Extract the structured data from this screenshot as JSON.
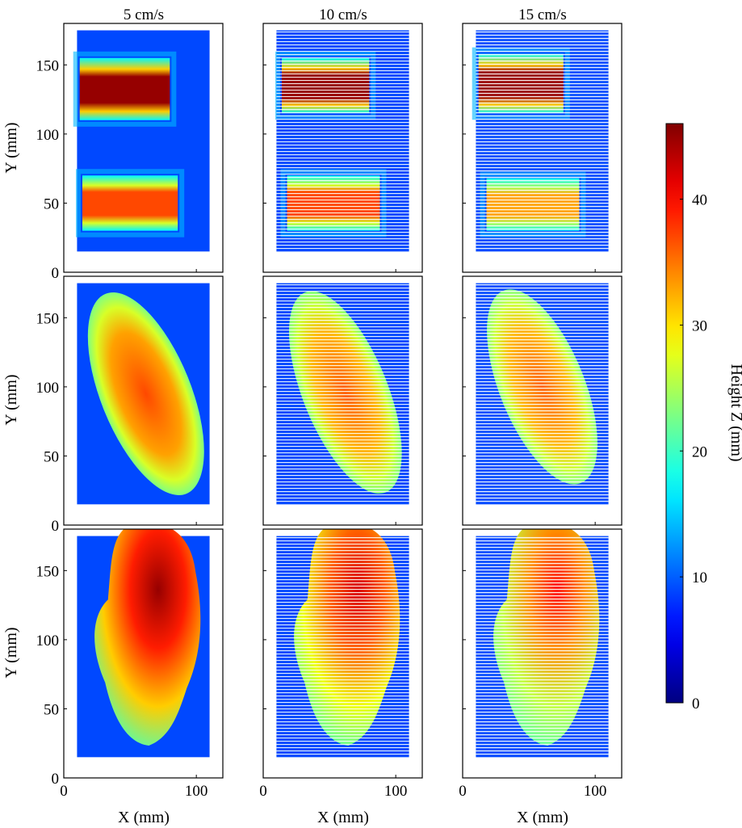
{
  "chart_data": {
    "type": "heatmap",
    "description_free": true,
    "columns": [
      "5 cm/s",
      "10 cm/s",
      "15 cm/s"
    ],
    "xlabel": "X (mm)",
    "ylabel": "Y (mm)",
    "xlim": [
      0,
      120
    ],
    "ylim": [
      0,
      180
    ],
    "xticks": [
      "0",
      "100"
    ],
    "yticks": [
      "0",
      "50",
      "100",
      "150"
    ],
    "colorbar": {
      "label": "Height Z (mm)",
      "min": 0,
      "max": 46,
      "ticks": [
        "0",
        "10",
        "20",
        "30",
        "40"
      ],
      "colormap": "jet"
    },
    "rows": [
      {
        "row": 1,
        "panels": [
          {
            "speed": "5 cm/s",
            "scan_bounds": {
              "x": [
                10,
                110
              ],
              "y": [
                15,
                175
              ]
            },
            "background_height": 9,
            "objects": [
              {
                "shape": "box",
                "x": [
                  12,
                  80
                ],
                "y": [
                  110,
                  155
                ],
                "peak_height": 45
              },
              {
                "shape": "box",
                "x": [
                  14,
                  86
                ],
                "y": [
                  30,
                  70
                ],
                "peak_height": 37
              }
            ]
          },
          {
            "speed": "10 cm/s",
            "scan_bounds": {
              "x": [
                10,
                110
              ],
              "y": [
                15,
                175
              ]
            },
            "background_height": 9,
            "objects": [
              {
                "shape": "box",
                "x": [
                  14,
                  80
                ],
                "y": [
                  115,
                  155
                ],
                "peak_height": 45
              },
              {
                "shape": "box",
                "x": [
                  18,
                  88
                ],
                "y": [
                  30,
                  70
                ],
                "peak_height": 37
              }
            ]
          },
          {
            "speed": "15 cm/s",
            "scan_bounds": {
              "x": [
                10,
                110
              ],
              "y": [
                15,
                175
              ]
            },
            "background_height": 9,
            "objects": [
              {
                "shape": "box",
                "x": [
                  12,
                  76
                ],
                "y": [
                  115,
                  158
                ],
                "peak_height": 45
              },
              {
                "shape": "box",
                "x": [
                  18,
                  88
                ],
                "y": [
                  30,
                  68
                ],
                "peak_height": 33
              }
            ]
          }
        ]
      },
      {
        "row": 2,
        "panels": [
          {
            "speed": "5 cm/s",
            "scan_bounds": {
              "x": [
                10,
                110
              ],
              "y": [
                15,
                175
              ]
            },
            "background_height": 9,
            "objects": [
              {
                "shape": "ellipse",
                "center": [
                  62,
                  95
                ],
                "radii": [
                  34,
                  78
                ],
                "tilt_deg": -22,
                "peak_height": 37
              }
            ]
          },
          {
            "speed": "10 cm/s",
            "scan_bounds": {
              "x": [
                10,
                110
              ],
              "y": [
                15,
                175
              ]
            },
            "background_height": 9,
            "objects": [
              {
                "shape": "ellipse",
                "center": [
                  62,
                  96
                ],
                "radii": [
                  32,
                  78
                ],
                "tilt_deg": -22,
                "peak_height": 36
              }
            ]
          },
          {
            "speed": "15 cm/s",
            "scan_bounds": {
              "x": [
                10,
                110
              ],
              "y": [
                15,
                175
              ]
            },
            "background_height": 9,
            "objects": [
              {
                "shape": "ellipse",
                "center": [
                  60,
                  100
                ],
                "radii": [
                  32,
                  75
                ],
                "tilt_deg": -22,
                "peak_height": 36
              }
            ]
          }
        ]
      },
      {
        "row": 3,
        "panels": [
          {
            "speed": "5 cm/s",
            "scan_bounds": {
              "x": [
                10,
                110
              ],
              "y": [
                15,
                175
              ]
            },
            "background_height": 9,
            "objects": [
              {
                "shape": "lobed",
                "center": [
                  62,
                  105
                ],
                "radii": [
                  44,
                  80
                ],
                "peak_height": 45
              }
            ]
          },
          {
            "speed": "10 cm/s",
            "scan_bounds": {
              "x": [
                10,
                110
              ],
              "y": [
                15,
                175
              ]
            },
            "background_height": 9,
            "objects": [
              {
                "shape": "lobed",
                "center": [
                  62,
                  105
                ],
                "radii": [
                  44,
                  80
                ],
                "peak_height": 42
              }
            ]
          },
          {
            "speed": "15 cm/s",
            "scan_bounds": {
              "x": [
                10,
                110
              ],
              "y": [
                15,
                175
              ]
            },
            "background_height": 9,
            "objects": [
              {
                "shape": "lobed",
                "center": [
                  62,
                  105
                ],
                "radii": [
                  44,
                  80
                ],
                "peak_height": 40
              }
            ]
          }
        ]
      }
    ]
  }
}
